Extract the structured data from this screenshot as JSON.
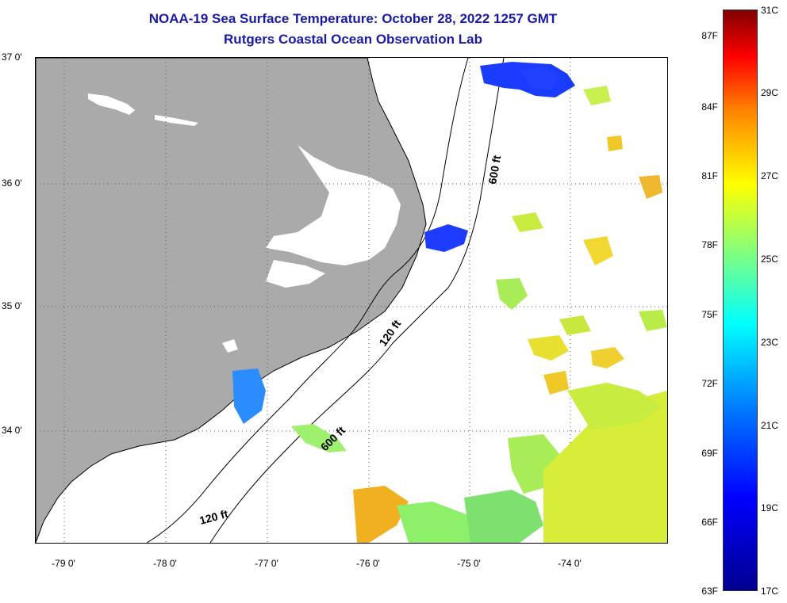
{
  "header": {
    "title": "NOAA-19 Sea Surface Temperature:  October 28, 2022 1257 GMT",
    "subtitle": "Rutgers Coastal Ocean Observation Lab"
  },
  "map": {
    "lat_labels": [
      "37 0'",
      "36 0'",
      "35 0'",
      "34 0'"
    ],
    "lon_labels": [
      "-79 0'",
      "-78 0'",
      "-77 0'",
      "-76 0'",
      "-75 0'",
      "-74 0'"
    ],
    "contour_labels": [
      "600 ft",
      "120 ft",
      "600 ft",
      "120 ft"
    ],
    "land_color": "#aaaaaa"
  },
  "colorbar": {
    "fahrenheit_labels": [
      "87F",
      "84F",
      "81F",
      "78F",
      "75F",
      "72F",
      "69F",
      "66F",
      "63F"
    ],
    "celsius_labels": [
      "31C",
      "29C",
      "27C",
      "25C",
      "23C",
      "21C",
      "19C",
      "17C"
    ]
  }
}
